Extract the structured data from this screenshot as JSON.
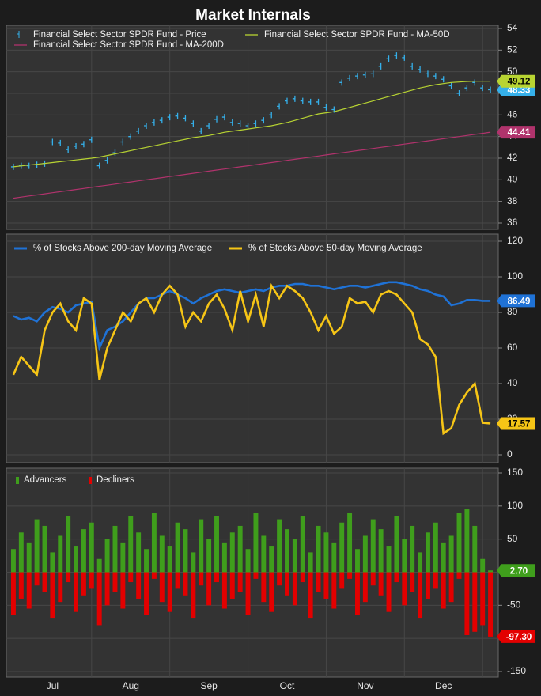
{
  "chart_data": [
    {
      "type": "line",
      "title": "Market Internals",
      "ylim": [
        36,
        54
      ],
      "yticks": [
        36,
        38,
        40,
        42,
        44,
        46,
        48,
        50,
        52,
        54
      ],
      "grid": true,
      "series": [
        {
          "name": "Financial Select Sector SPDR Fund - Price",
          "color": "#35b0ea",
          "mode": "markers",
          "values": [
            41.2,
            41.3,
            41.3,
            41.4,
            41.5,
            43.5,
            43.4,
            42.8,
            43.1,
            43.3,
            43.7,
            41.3,
            41.8,
            42.5,
            43.5,
            44.0,
            44.5,
            45.0,
            45.3,
            45.5,
            45.8,
            45.9,
            45.7,
            45.2,
            44.5,
            45.0,
            45.6,
            45.8,
            45.3,
            45.2,
            45.0,
            45.2,
            45.5,
            46.0,
            46.8,
            47.3,
            47.5,
            47.3,
            47.2,
            47.2,
            46.7,
            46.5,
            49.0,
            49.4,
            49.6,
            49.7,
            49.8,
            50.5,
            51.2,
            51.5,
            51.3,
            50.5,
            50.2,
            49.8,
            49.6,
            49.3,
            48.7,
            48.0,
            48.5,
            49.0,
            48.5,
            48.33
          ]
        },
        {
          "name": "Financial Select Sector SPDR Fund - MA-50D",
          "color": "#b8d432",
          "values": [
            41.2,
            41.28,
            41.36,
            41.44,
            41.52,
            41.6,
            41.68,
            41.76,
            41.84,
            41.92,
            42.0,
            42.1,
            42.25,
            42.4,
            42.55,
            42.7,
            42.85,
            43.0,
            43.15,
            43.3,
            43.45,
            43.6,
            43.75,
            43.9,
            44.0,
            44.1,
            44.25,
            44.4,
            44.5,
            44.6,
            44.7,
            44.8,
            44.9,
            45.0,
            45.15,
            45.3,
            45.5,
            45.7,
            45.9,
            46.1,
            46.2,
            46.3,
            46.5,
            46.7,
            46.9,
            47.1,
            47.3,
            47.5,
            47.7,
            47.9,
            48.1,
            48.3,
            48.5,
            48.65,
            48.8,
            48.9,
            49.0,
            49.05,
            49.1,
            49.12,
            49.12,
            49.12
          ]
        },
        {
          "name": "Financial Select Sector SPDR Fund - MA-200D",
          "color": "#b0336c",
          "values": [
            38.3,
            38.4,
            38.5,
            38.6,
            38.7,
            38.8,
            38.9,
            39.0,
            39.1,
            39.2,
            39.3,
            39.4,
            39.5,
            39.6,
            39.7,
            39.8,
            39.9,
            40.0,
            40.1,
            40.2,
            40.3,
            40.4,
            40.5,
            40.6,
            40.7,
            40.8,
            40.9,
            41.0,
            41.1,
            41.2,
            41.3,
            41.4,
            41.5,
            41.6,
            41.7,
            41.8,
            41.9,
            42.0,
            42.1,
            42.2,
            42.3,
            42.4,
            42.5,
            42.6,
            42.7,
            42.8,
            42.9,
            43.0,
            43.1,
            43.2,
            43.3,
            43.4,
            43.5,
            43.6,
            43.7,
            43.8,
            43.9,
            44.0,
            44.1,
            44.2,
            44.3,
            44.41
          ]
        }
      ]
    },
    {
      "type": "line",
      "ylim": [
        0,
        120
      ],
      "yticks": [
        0,
        20,
        40,
        60,
        80,
        100,
        120
      ],
      "grid": true,
      "series": [
        {
          "name": "% of Stocks Above 200-day Moving Average",
          "color": "#1f72d6",
          "values": [
            78,
            76,
            77,
            75,
            80,
            83,
            82,
            80,
            84,
            85,
            86,
            60,
            70,
            72,
            75,
            80,
            85,
            88,
            88,
            90,
            92,
            90,
            88,
            85,
            88,
            90,
            92,
            93,
            92,
            91,
            92,
            93,
            92,
            94,
            95,
            95,
            96,
            96,
            95,
            95,
            94,
            93,
            94,
            95,
            95,
            94,
            95,
            96,
            97,
            97,
            96,
            95,
            93,
            92,
            90,
            89,
            84,
            85,
            87,
            87,
            86.5,
            86.49
          ]
        },
        {
          "name": "% of Stocks Above 50-day Moving Average",
          "color": "#f6c516",
          "values": [
            45,
            55,
            50,
            45,
            70,
            80,
            85,
            75,
            70,
            88,
            85,
            42,
            60,
            70,
            80,
            75,
            85,
            88,
            80,
            90,
            95,
            90,
            72,
            80,
            75,
            85,
            90,
            82,
            70,
            92,
            75,
            90,
            72,
            95,
            88,
            95,
            92,
            88,
            80,
            70,
            78,
            68,
            72,
            88,
            85,
            86,
            80,
            90,
            92,
            90,
            85,
            80,
            65,
            62,
            55,
            12,
            15,
            28,
            35,
            40,
            18,
            17.57
          ]
        }
      ]
    },
    {
      "type": "bar",
      "ylim": [
        -150,
        150
      ],
      "yticks": [
        -150,
        -100,
        -50,
        0,
        50,
        100,
        150
      ],
      "grid": true,
      "categories": [
        null,
        null,
        null,
        null,
        null,
        "Jul",
        null,
        null,
        null,
        null,
        null,
        null,
        null,
        null,
        null,
        "Aug",
        null,
        null,
        null,
        null,
        null,
        null,
        null,
        null,
        null,
        "Sep",
        null,
        null,
        null,
        null,
        null,
        null,
        null,
        null,
        null,
        "Oct",
        null,
        null,
        null,
        null,
        null,
        null,
        null,
        null,
        null,
        "Nov",
        null,
        null,
        null,
        null,
        null,
        null,
        null,
        null,
        null,
        "Dec",
        null,
        null,
        null,
        null,
        null,
        null
      ],
      "series": [
        {
          "name": "Advancers",
          "color": "#3f9e1c",
          "values": [
            35,
            60,
            45,
            80,
            70,
            30,
            55,
            85,
            40,
            65,
            75,
            20,
            50,
            70,
            45,
            85,
            60,
            35,
            90,
            55,
            40,
            75,
            65,
            30,
            80,
            50,
            85,
            45,
            60,
            70,
            35,
            90,
            55,
            40,
            80,
            65,
            50,
            85,
            30,
            70,
            60,
            45,
            75,
            90,
            35,
            55,
            80,
            65,
            40,
            85,
            50,
            70,
            30,
            60,
            75,
            45,
            55,
            90,
            95,
            70,
            20,
            2.7
          ],
          "value_labels": [
            null,
            null,
            null,
            null,
            null,
            null,
            null,
            null,
            null,
            null,
            null,
            null,
            null,
            null,
            null,
            null,
            null,
            null,
            null,
            null,
            null,
            null,
            null,
            null,
            null,
            null,
            null,
            null,
            null,
            null,
            null,
            null,
            null,
            null,
            null,
            null,
            null,
            null,
            null,
            null,
            null,
            null,
            null,
            null,
            null,
            null,
            null,
            null,
            null,
            null,
            null,
            null,
            null,
            null,
            null,
            null,
            null,
            null,
            null,
            null,
            null,
            "2.70"
          ]
        },
        {
          "name": "Decliners",
          "color": "#e30000",
          "values": [
            -65,
            -40,
            -55,
            -20,
            -30,
            -70,
            -45,
            -15,
            -60,
            -35,
            -25,
            -80,
            -50,
            -30,
            -55,
            -15,
            -40,
            -65,
            -10,
            -45,
            -60,
            -25,
            -35,
            -70,
            -20,
            -50,
            -15,
            -55,
            -40,
            -30,
            -65,
            -10,
            -45,
            -60,
            -20,
            -35,
            -50,
            -15,
            -70,
            -30,
            -40,
            -55,
            -25,
            -10,
            -65,
            -45,
            -20,
            -35,
            -60,
            -15,
            -50,
            -30,
            -70,
            -40,
            -25,
            -55,
            -45,
            -10,
            -95,
            -90,
            -80,
            -97.3
          ],
          "value_labels": [
            null,
            null,
            null,
            null,
            null,
            null,
            null,
            null,
            null,
            null,
            null,
            null,
            null,
            null,
            null,
            null,
            null,
            null,
            null,
            null,
            null,
            null,
            null,
            null,
            null,
            null,
            null,
            null,
            null,
            null,
            null,
            null,
            null,
            null,
            null,
            null,
            null,
            null,
            null,
            null,
            null,
            null,
            null,
            null,
            null,
            null,
            null,
            null,
            null,
            null,
            null,
            null,
            null,
            null,
            null,
            null,
            null,
            null,
            null,
            null,
            null,
            "-97.30"
          ]
        }
      ]
    }
  ]
}
